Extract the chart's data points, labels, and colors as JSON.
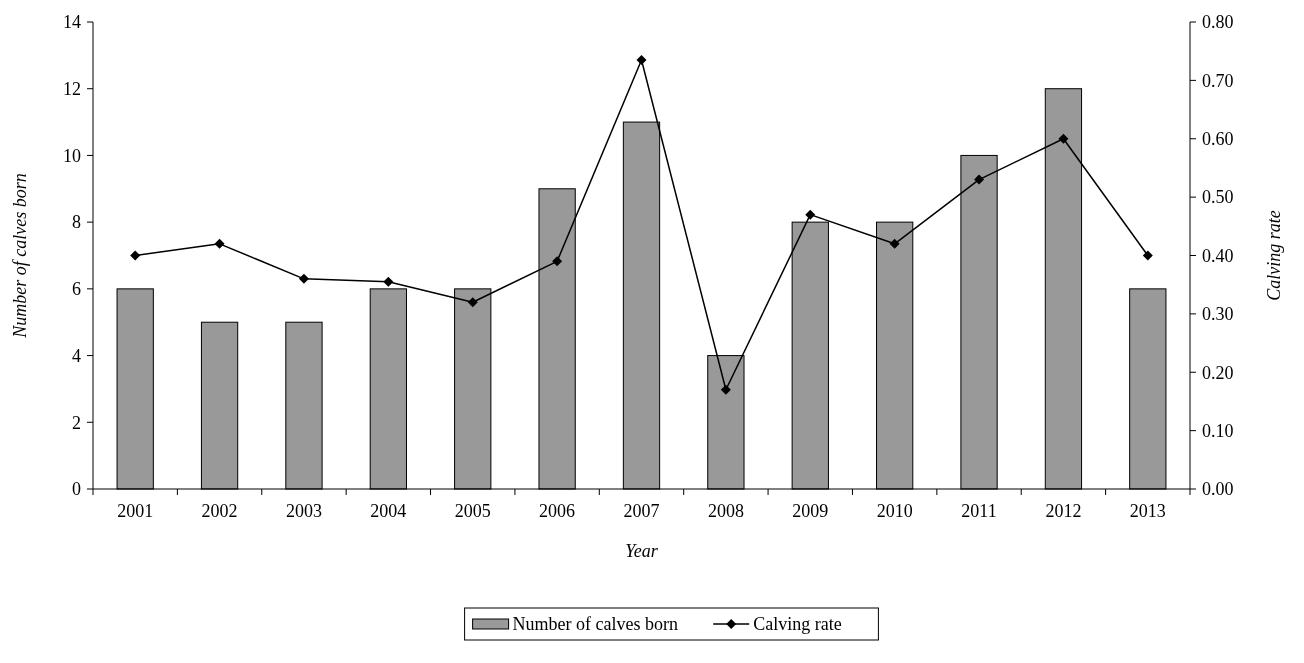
{
  "chart_data": {
    "type": "bar",
    "xlabel": "Year",
    "ylabel": "Number of calves born",
    "y2label": "Calving rate",
    "categories": [
      "2001",
      "2002",
      "2003",
      "2004",
      "2005",
      "2006",
      "2007",
      "2008",
      "2009",
      "2010",
      "2011",
      "2012",
      "2013"
    ],
    "series": [
      {
        "name": "Number of calves born",
        "color": "#999999",
        "values": [
          6,
          5,
          5,
          6,
          6,
          9,
          11,
          4,
          8,
          8,
          10,
          12,
          6
        ]
      },
      {
        "name": "Calving rate",
        "type": "line",
        "axis": "y2",
        "color": "#000000",
        "marker": "diamond",
        "values": [
          0.4,
          0.42,
          0.36,
          0.355,
          0.32,
          0.39,
          0.735,
          0.17,
          0.47,
          0.42,
          0.53,
          0.6,
          0.4
        ]
      }
    ],
    "ylim": [
      0,
      14
    ],
    "yticks": [
      0,
      2,
      4,
      6,
      8,
      10,
      12,
      14
    ],
    "y2lim": [
      0,
      0.8
    ],
    "y2ticks": [
      {
        "value": 0,
        "label": "0.00"
      },
      {
        "value": 0.1,
        "label": "0.10"
      },
      {
        "value": 0.2,
        "label": "0.20"
      },
      {
        "value": 0.3,
        "label": "0.30"
      },
      {
        "value": 0.4,
        "label": "0.40"
      },
      {
        "value": 0.5,
        "label": "0.50"
      },
      {
        "value": 0.6,
        "label": "0.60"
      },
      {
        "value": 0.7,
        "label": "0.70"
      },
      {
        "value": 0.8,
        "label": "0.80"
      }
    ],
    "legend": "bottom",
    "grid": false
  }
}
